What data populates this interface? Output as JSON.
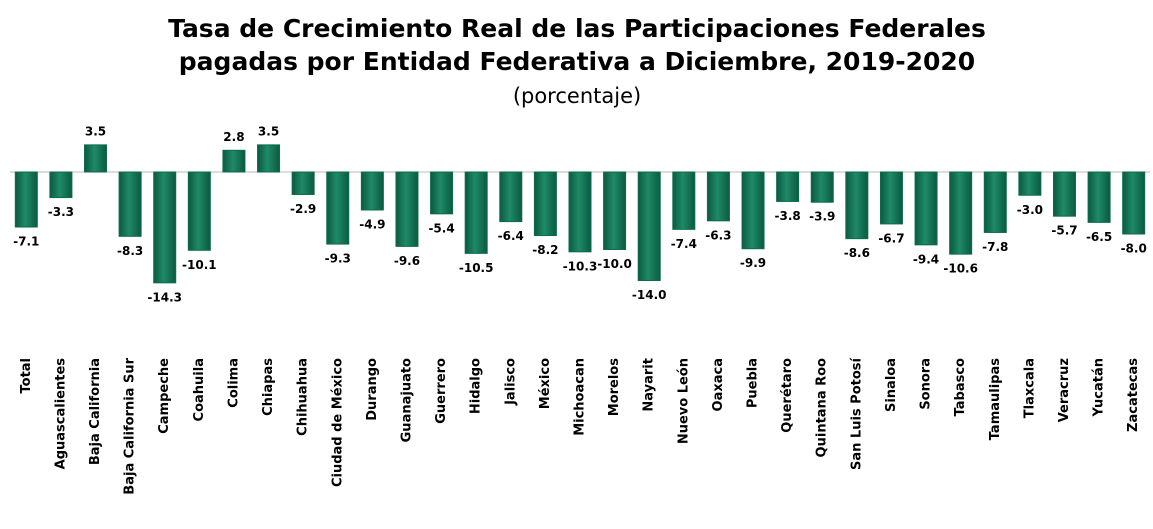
{
  "chart_data": {
    "type": "bar",
    "title": "Tasa de Crecimiento Real de las Participaciones Federales",
    "title_line2": "pagadas por Entidad Federativa a Diciembre, 2019-2020",
    "subtitle": "(porcentaje)",
    "color": "#0e6b4e",
    "categories": [
      "Total",
      "Aguascalientes",
      "Baja California",
      "Baja California Sur",
      "Campeche",
      "Coahuila",
      "Colima",
      "Chiapas",
      "Chihuahua",
      "Ciudad de México",
      "Durango",
      "Guanajuato",
      "Guerrero",
      "Hidalgo",
      "Jalisco",
      "México",
      "Michoacan",
      "Morelos",
      "Nayarit",
      "Nuevo León",
      "Oaxaca",
      "Puebla",
      "Querétaro",
      "Quintana Roo",
      "San Luis Potosí",
      "Sinaloa",
      "Sonora",
      "Tabasco",
      "Tamaulipas",
      "Tlaxcala",
      "Veracruz",
      "Yucatán",
      "Zacatecas"
    ],
    "values": [
      -7.1,
      -3.3,
      3.5,
      -8.3,
      -14.3,
      -10.1,
      2.8,
      3.5,
      -2.9,
      -9.3,
      -4.9,
      -9.6,
      -5.4,
      -10.5,
      -6.4,
      -8.2,
      -10.3,
      -10.0,
      -14.0,
      -7.4,
      -6.3,
      -9.9,
      -3.8,
      -3.9,
      -8.6,
      -6.7,
      -9.4,
      -10.6,
      -7.8,
      -3.0,
      -5.7,
      -6.5,
      -8.0
    ],
    "value_labels": [
      "-7.1",
      "-3.3",
      "3.5",
      "-8.3",
      "-14.3",
      "-10.1",
      "2.8",
      "3.5",
      "-2.9",
      "-9.3",
      "-4.9",
      "-9.6",
      "-5.4",
      "-10.5",
      "-6.4",
      "-8.2",
      "-10.3",
      "-10.0",
      "-14.0",
      "-7.4",
      "-6.3",
      "-9.9",
      "-3.8",
      "-3.9",
      "-8.6",
      "-6.7",
      "-9.4",
      "-10.6",
      "-7.8",
      "-3.0",
      "-5.7",
      "-6.5",
      "-8.0"
    ]
  }
}
